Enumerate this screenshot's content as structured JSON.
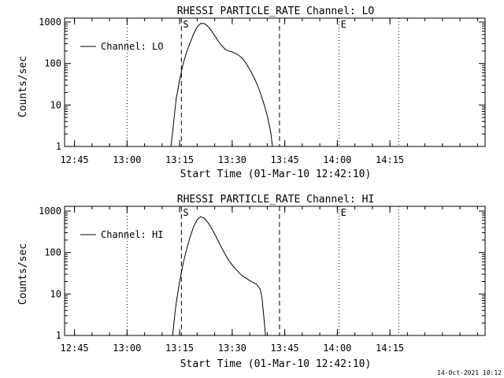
{
  "chart_data": [
    {
      "type": "line",
      "title": "RHESSI PARTICLE_RATE Channel: LO",
      "xlabel": "Start Time (01-Mar-10 12:42:10)",
      "ylabel": "Counts/sec",
      "legend": {
        "label": "Channel: LO",
        "placement": "top-left"
      },
      "y_scale": "log",
      "ylim": [
        1,
        1000
      ],
      "y_ticks": [
        "1",
        "10",
        "100",
        "1000"
      ],
      "x_range": [
        "12:42:10",
        "14:42:10"
      ],
      "x_ticks": [
        "12:45",
        "13:00",
        "13:15",
        "13:30",
        "13:45",
        "14:00",
        "14:15"
      ],
      "markers": [
        {
          "time": "13:00:00",
          "style": "dotted",
          "label": ""
        },
        {
          "time": "13:15:30",
          "style": "dashed",
          "label": "S"
        },
        {
          "time": "13:43:30",
          "style": "dashed",
          "label": ""
        },
        {
          "time": "14:00:30",
          "style": "dotted",
          "label": "E"
        },
        {
          "time": "14:17:30",
          "style": "dotted",
          "label": ""
        }
      ],
      "series": [
        {
          "name": "Channel: LO",
          "points": [
            [
              "13:12:30",
              1
            ],
            [
              "13:13:00",
              2.2
            ],
            [
              "13:13:30",
              5.5
            ],
            [
              "13:14:00",
              14
            ],
            [
              "13:15:00",
              40
            ],
            [
              "13:16:00",
              100
            ],
            [
              "13:17:00",
              190
            ],
            [
              "13:18:00",
              320
            ],
            [
              "13:19:00",
              520
            ],
            [
              "13:20:00",
              760
            ],
            [
              "13:21:00",
              930
            ],
            [
              "13:22:00",
              920
            ],
            [
              "13:23:00",
              800
            ],
            [
              "13:24:00",
              630
            ],
            [
              "13:25:00",
              470
            ],
            [
              "13:26:00",
              350
            ],
            [
              "13:27:00",
              270
            ],
            [
              "13:28:00",
              220
            ],
            [
              "13:29:00",
              200
            ],
            [
              "13:30:00",
              190
            ],
            [
              "13:31:00",
              175
            ],
            [
              "13:32:00",
              155
            ],
            [
              "13:33:00",
              130
            ],
            [
              "13:34:00",
              100
            ],
            [
              "13:35:00",
              72
            ],
            [
              "13:36:00",
              50
            ],
            [
              "13:37:00",
              33
            ],
            [
              "13:38:00",
              20
            ],
            [
              "13:39:00",
              11
            ],
            [
              "13:40:00",
              5.5
            ],
            [
              "13:41:00",
              2.2
            ],
            [
              "13:41:30",
              1
            ]
          ]
        }
      ]
    },
    {
      "type": "line",
      "title": "RHESSI PARTICLE_RATE Channel: HI",
      "xlabel": "Start Time (01-Mar-10 12:42:10)",
      "ylabel": "Counts/sec",
      "legend": {
        "label": "Channel: HI",
        "placement": "top-left"
      },
      "y_scale": "log",
      "ylim": [
        1,
        1000
      ],
      "y_ticks": [
        "1",
        "10",
        "100",
        "1000"
      ],
      "x_range": [
        "12:42:10",
        "14:42:10"
      ],
      "x_ticks": [
        "12:45",
        "13:00",
        "13:15",
        "13:30",
        "13:45",
        "14:00",
        "14:15"
      ],
      "markers": [
        {
          "time": "13:00:00",
          "style": "dotted",
          "label": ""
        },
        {
          "time": "13:15:30",
          "style": "dashed",
          "label": "S"
        },
        {
          "time": "13:43:30",
          "style": "dashed",
          "label": ""
        },
        {
          "time": "14:00:30",
          "style": "dotted",
          "label": "E"
        },
        {
          "time": "14:17:30",
          "style": "dotted",
          "label": ""
        }
      ],
      "series": [
        {
          "name": "Channel: HI",
          "points": [
            [
              "13:13:00",
              1
            ],
            [
              "13:13:30",
              2.5
            ],
            [
              "13:14:00",
              6
            ],
            [
              "13:15:00",
              20
            ],
            [
              "13:16:00",
              55
            ],
            [
              "13:17:00",
              120
            ],
            [
              "13:18:00",
              240
            ],
            [
              "13:19:00",
              420
            ],
            [
              "13:20:00",
              620
            ],
            [
              "13:21:00",
              730
            ],
            [
              "13:22:00",
              680
            ],
            [
              "13:23:00",
              540
            ],
            [
              "13:24:00",
              400
            ],
            [
              "13:25:00",
              280
            ],
            [
              "13:26:00",
              190
            ],
            [
              "13:27:00",
              130
            ],
            [
              "13:28:00",
              90
            ],
            [
              "13:29:00",
              65
            ],
            [
              "13:30:00",
              50
            ],
            [
              "13:31:00",
              40
            ],
            [
              "13:32:00",
              32
            ],
            [
              "13:33:00",
              27
            ],
            [
              "13:34:00",
              24
            ],
            [
              "13:35:00",
              21
            ],
            [
              "13:36:00",
              19
            ],
            [
              "13:37:00",
              17
            ],
            [
              "13:38:00",
              13
            ],
            [
              "13:38:30",
              8
            ],
            [
              "13:39:00",
              3
            ],
            [
              "13:39:30",
              1
            ]
          ]
        }
      ]
    }
  ],
  "footer": {
    "timestamp": "14-Oct-2021 10:12"
  },
  "colors": {
    "background": "#ffffff",
    "ink": "#000000"
  }
}
